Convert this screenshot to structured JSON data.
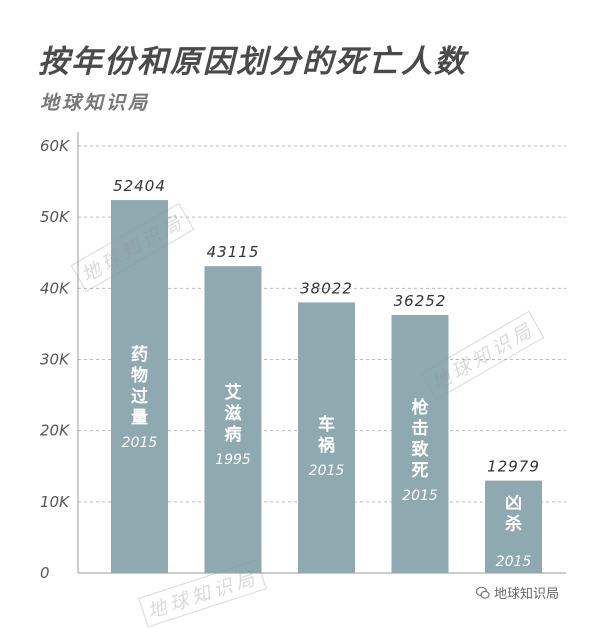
{
  "title": "按年份和原因划分的死亡人数",
  "subtitle": "地球知识局",
  "watermark_text": "地球知识局",
  "footer": {
    "icon": "wechat-icon",
    "label": "地球知识局"
  },
  "colors": {
    "bar": "#8fa9b0",
    "grid": "#bbbbbb"
  },
  "chart_data": {
    "type": "bar",
    "title": "按年份和原因划分的死亡人数",
    "xlabel": "",
    "ylabel": "",
    "ylim": [
      0,
      60000
    ],
    "ticks": [
      {
        "value": 0,
        "label": "0"
      },
      {
        "value": 10000,
        "label": "10K"
      },
      {
        "value": 20000,
        "label": "20K"
      },
      {
        "value": 30000,
        "label": "30K"
      },
      {
        "value": 40000,
        "label": "40K"
      },
      {
        "value": 50000,
        "label": "50K"
      },
      {
        "value": 60000,
        "label": "60K"
      }
    ],
    "grid": true,
    "categories": [
      "药物过量",
      "艾滋病",
      "车祸",
      "枪击致死",
      "凶杀"
    ],
    "values": [
      52404,
      43115,
      38022,
      36252,
      12979
    ],
    "value_labels": [
      "52404",
      "43115",
      "38022",
      "36252",
      "12979"
    ],
    "years": [
      "2015",
      "1995",
      "2015",
      "2015",
      "2015"
    ]
  }
}
